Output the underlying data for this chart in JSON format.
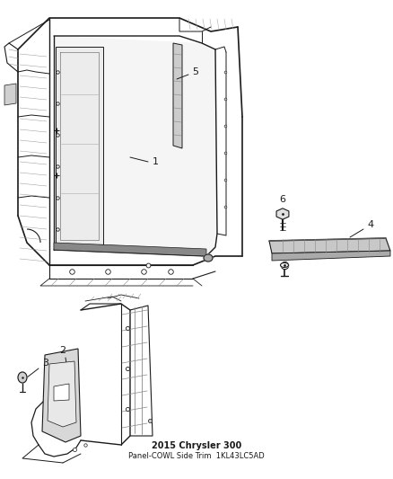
{
  "title": "2015 Chrysler 300",
  "subtitle": "Panel-COWL Side Trim",
  "part_number": "1KL43LC5AD",
  "background_color": "#ffffff",
  "line_color": "#1a1a1a",
  "fig_width": 4.38,
  "fig_height": 5.33,
  "dpi": 100,
  "label_fontsize": 8,
  "title_fontsize": 7,
  "subtitle_fontsize": 6
}
